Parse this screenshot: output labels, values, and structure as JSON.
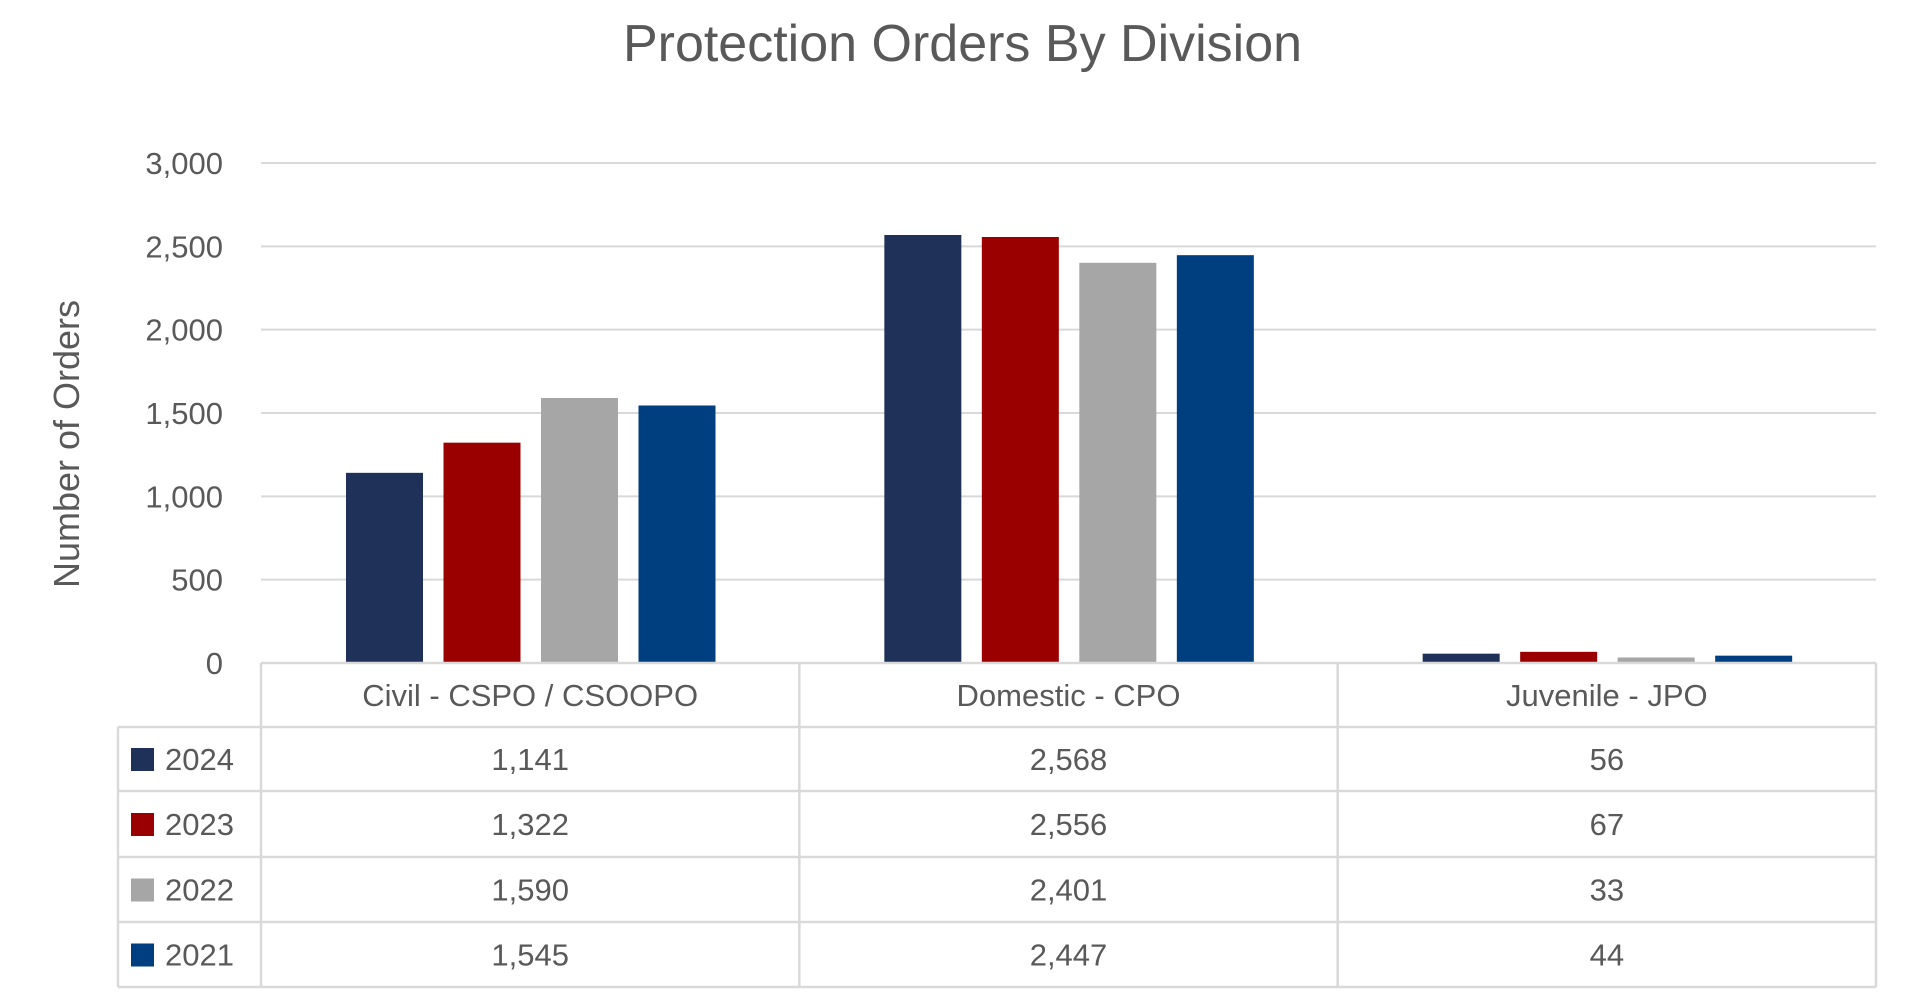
{
  "chart_data": {
    "type": "bar",
    "title": "Protection Orders By Division",
    "xlabel": "",
    "ylabel": "Number of Orders",
    "ylim": [
      0,
      3000
    ],
    "yticks": [
      "0",
      "500",
      "1,000",
      "1,500",
      "2,000",
      "2,500",
      "3,000"
    ],
    "grid": true,
    "legend": "data-table",
    "categories": [
      "Civil - CSPO / CSOOPO",
      "Domestic - CPO",
      "Juvenile - JPO"
    ],
    "series": [
      {
        "name": "2024",
        "color": "#1f3158",
        "values": [
          1141,
          2568,
          56
        ],
        "labels": [
          "1,141",
          "2,568",
          "56"
        ]
      },
      {
        "name": "2023",
        "color": "#9a0000",
        "values": [
          1322,
          2556,
          67
        ],
        "labels": [
          "1,322",
          "2,556",
          "67"
        ]
      },
      {
        "name": "2022",
        "color": "#a6a6a6",
        "values": [
          1590,
          2401,
          33
        ],
        "labels": [
          "1,590",
          "2,401",
          "33"
        ]
      },
      {
        "name": "2021",
        "color": "#003f7f",
        "values": [
          1545,
          2447,
          44
        ],
        "labels": [
          "1,545",
          "2,447",
          "44"
        ]
      }
    ]
  }
}
